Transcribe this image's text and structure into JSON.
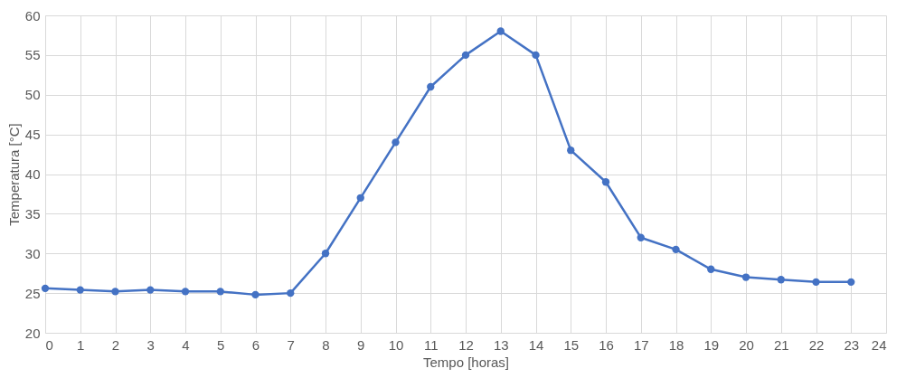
{
  "chart_data": {
    "type": "line",
    "xlabel": "Tempo [horas]",
    "ylabel": "Temperatura [°C]",
    "x": [
      0,
      1,
      2,
      3,
      4,
      5,
      6,
      7,
      8,
      9,
      10,
      11,
      12,
      13,
      14,
      15,
      16,
      17,
      18,
      19,
      20,
      21,
      22,
      23
    ],
    "series": [
      {
        "color": "#4472c4",
        "values": [
          25.6,
          25.4,
          25.2,
          25.4,
          25.2,
          25.2,
          24.8,
          25.0,
          30,
          37,
          44,
          51,
          55,
          58,
          55,
          43,
          39,
          32,
          30.5,
          28,
          27,
          26.7,
          26.4,
          26.4
        ]
      }
    ],
    "xlim": [
      0,
      24
    ],
    "xticks": [
      0,
      1,
      2,
      3,
      4,
      5,
      6,
      7,
      8,
      9,
      10,
      11,
      12,
      13,
      14,
      15,
      16,
      17,
      18,
      19,
      20,
      21,
      22,
      23,
      24
    ],
    "ylim": [
      20,
      60
    ],
    "yticks": [
      20,
      25,
      30,
      35,
      40,
      45,
      50,
      55,
      60
    ],
    "grid": true,
    "marker": "circle",
    "line_style": "solid"
  }
}
